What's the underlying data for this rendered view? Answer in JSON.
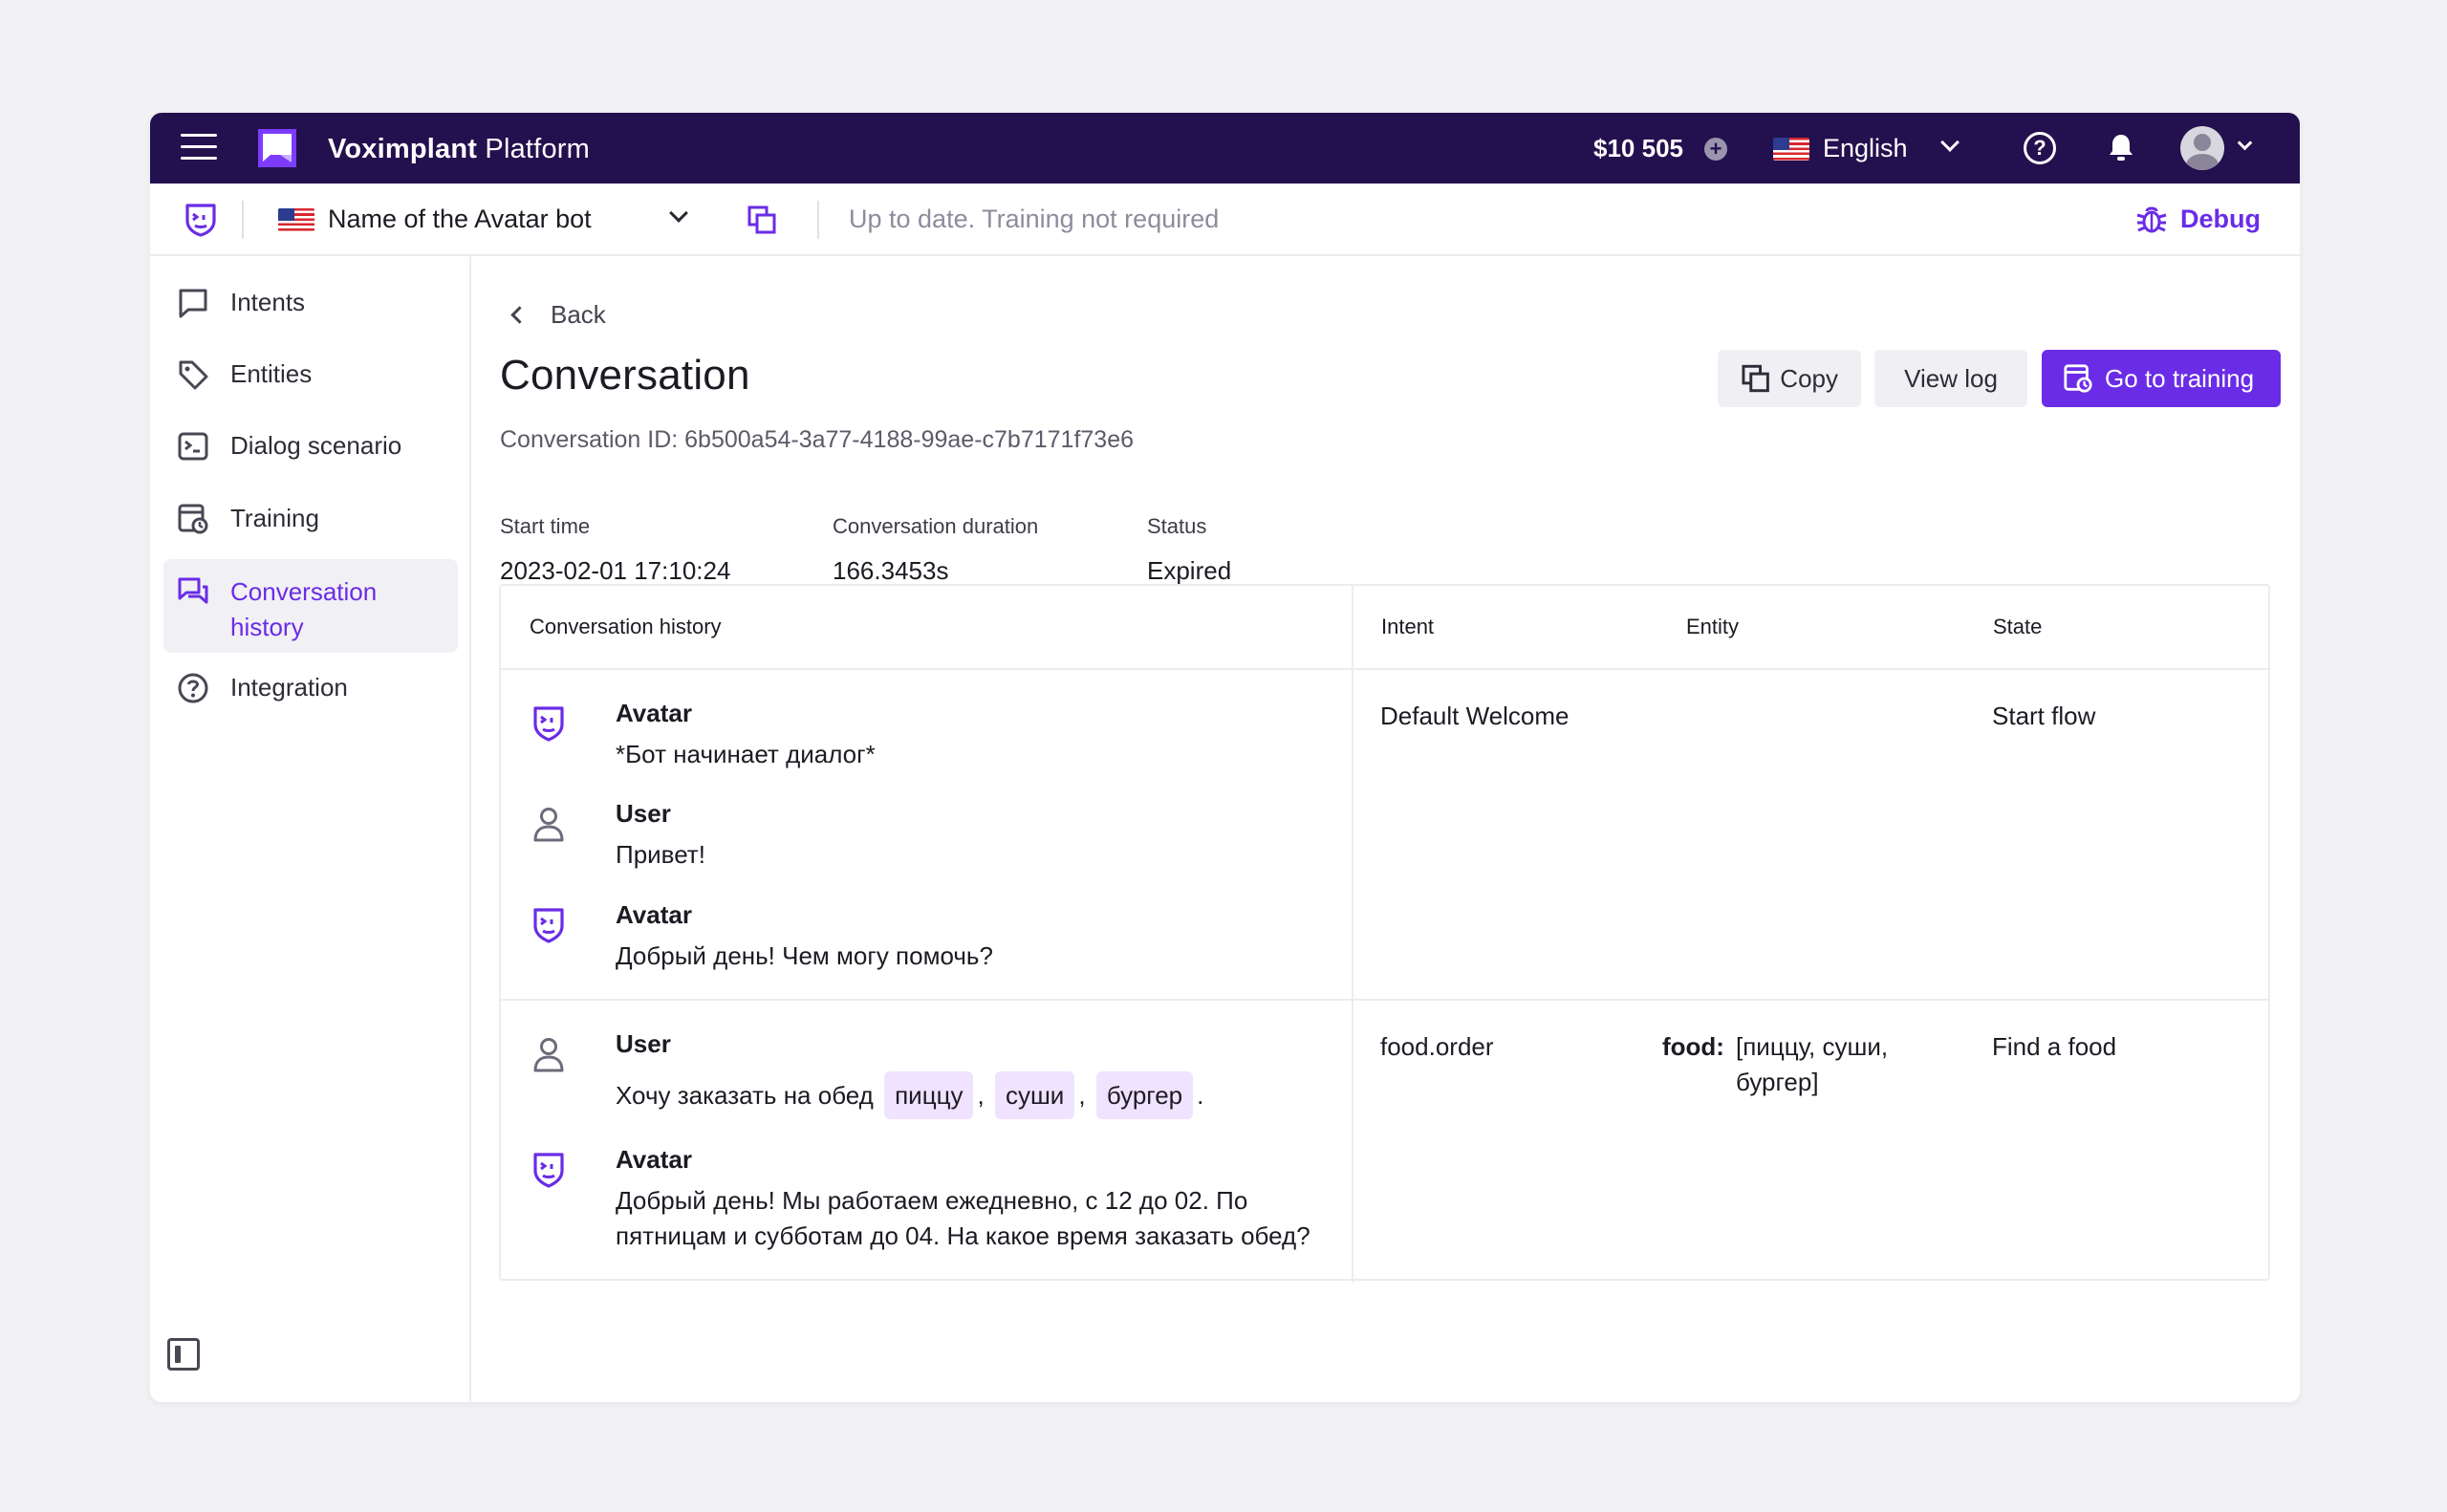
{
  "topbar": {
    "brand_bold": "Voximplant",
    "brand_rest": " Platform",
    "balance": "$10 505",
    "language": "English"
  },
  "subbar": {
    "bot_name": "Name of the Avatar bot",
    "status": "Up to date. Training not required",
    "debug_label": "Debug"
  },
  "sidebar": {
    "items": [
      {
        "label": "Intents",
        "icon": "chat-bubble-icon"
      },
      {
        "label": "Entities",
        "icon": "tag-icon"
      },
      {
        "label": "Dialog scenario",
        "icon": "terminal-icon"
      },
      {
        "label": "Training",
        "icon": "training-icon"
      },
      {
        "label": "Conversation history",
        "icon": "conversations-icon",
        "active": true
      },
      {
        "label": "Integration",
        "icon": "help-circle-icon"
      }
    ]
  },
  "main": {
    "back_label": "Back",
    "title": "Conversation",
    "copy_label": "Copy",
    "view_log_label": "View log",
    "go_training_label": "Go to training",
    "conversation_id": "Conversation ID: 6b500a54-3a77-4188-99ae-c7b7171f73e6",
    "meta": {
      "start_time_label": "Start time",
      "start_time": "2023-02-01 17:10:24",
      "duration_label": "Conversation duration",
      "duration": "166.3453s",
      "status_label": "Status",
      "status": "Expired"
    },
    "table": {
      "headers": {
        "history": "Conversation history",
        "intent": "Intent",
        "entity": "Entity",
        "state": "State"
      },
      "rows": [
        {
          "messages": [
            {
              "role": "Avatar",
              "text": "*Бот начинает диалог*"
            },
            {
              "role": "User",
              "text": "Привет!"
            },
            {
              "role": "Avatar",
              "text": "Добрый день! Чем могу помочь?"
            }
          ],
          "intent": "Default Welcome",
          "state": "Start flow"
        },
        {
          "messages": [
            {
              "role": "User",
              "text_prefix": "Хочу заказать на обед",
              "chips": [
                "пиццу",
                "суши",
                "бургер"
              ],
              "sep": ",",
              "end": "."
            },
            {
              "role": "Avatar",
              "line1": "Добрый день! Мы работаем ежедневно, с 12 до 02. По",
              "line2": "пятницам и субботам до 04. На какое время заказать обед?"
            }
          ],
          "intent": "food.order",
          "entity_key": "food:",
          "entity_line1": "[пиццу, суши,",
          "entity_line2": "бургер]",
          "state": "Find a food"
        }
      ]
    }
  },
  "colors": {
    "topbar": "#23104e",
    "accent": "#6a2ce6",
    "chip": "#efe3ff"
  }
}
